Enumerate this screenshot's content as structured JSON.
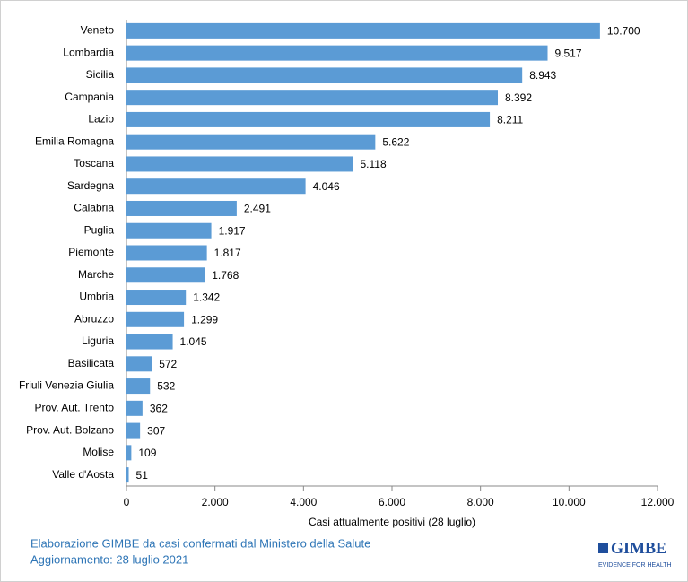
{
  "chart_data": {
    "type": "bar",
    "orientation": "horizontal",
    "categories": [
      "Veneto",
      "Lombardia",
      "Sicilia",
      "Campania",
      "Lazio",
      "Emilia Romagna",
      "Toscana",
      "Sardegna",
      "Calabria",
      "Puglia",
      "Piemonte",
      "Marche",
      "Umbria",
      "Abruzzo",
      "Liguria",
      "Basilicata",
      "Friuli Venezia Giulia",
      "Prov. Aut. Trento",
      "Prov. Aut. Bolzano",
      "Molise",
      "Valle d'Aosta"
    ],
    "values": [
      10700,
      9517,
      8943,
      8392,
      8211,
      5622,
      5118,
      4046,
      2491,
      1917,
      1817,
      1768,
      1342,
      1299,
      1045,
      572,
      532,
      362,
      307,
      109,
      51
    ],
    "value_labels": [
      "10.700",
      "9.517",
      "8.943",
      "8.392",
      "8.211",
      "5.622",
      "5.118",
      "4.046",
      "2.491",
      "1.917",
      "1.817",
      "1.768",
      "1.342",
      "1.299",
      "1.045",
      "572",
      "532",
      "362",
      "307",
      "109",
      "51"
    ],
    "color": "#5b9bd5",
    "xlim": [
      0,
      12000
    ],
    "xticks": [
      0,
      {
        "value": 2000,
        "label": "2.000"
      },
      {
        "value": 4000,
        "label": "4.000"
      },
      {
        "value": 6000,
        "label": "6.000"
      },
      {
        "value": 8000,
        "label": "8.000"
      },
      {
        "value": 10000,
        "label": "10.000"
      },
      {
        "value": 12000,
        "label": "12.000"
      }
    ],
    "xlabel": "Casi attualmente positivi (28 luglio)",
    "grid": false
  },
  "footer": {
    "source": "Elaborazione GIMBE da casi confermati dal Ministero della Salute",
    "updated": "Aggiornamento: 28 luglio 2021"
  },
  "logo": {
    "name": "GIMBE",
    "tagline": "EVIDENCE FOR HEALTH"
  }
}
